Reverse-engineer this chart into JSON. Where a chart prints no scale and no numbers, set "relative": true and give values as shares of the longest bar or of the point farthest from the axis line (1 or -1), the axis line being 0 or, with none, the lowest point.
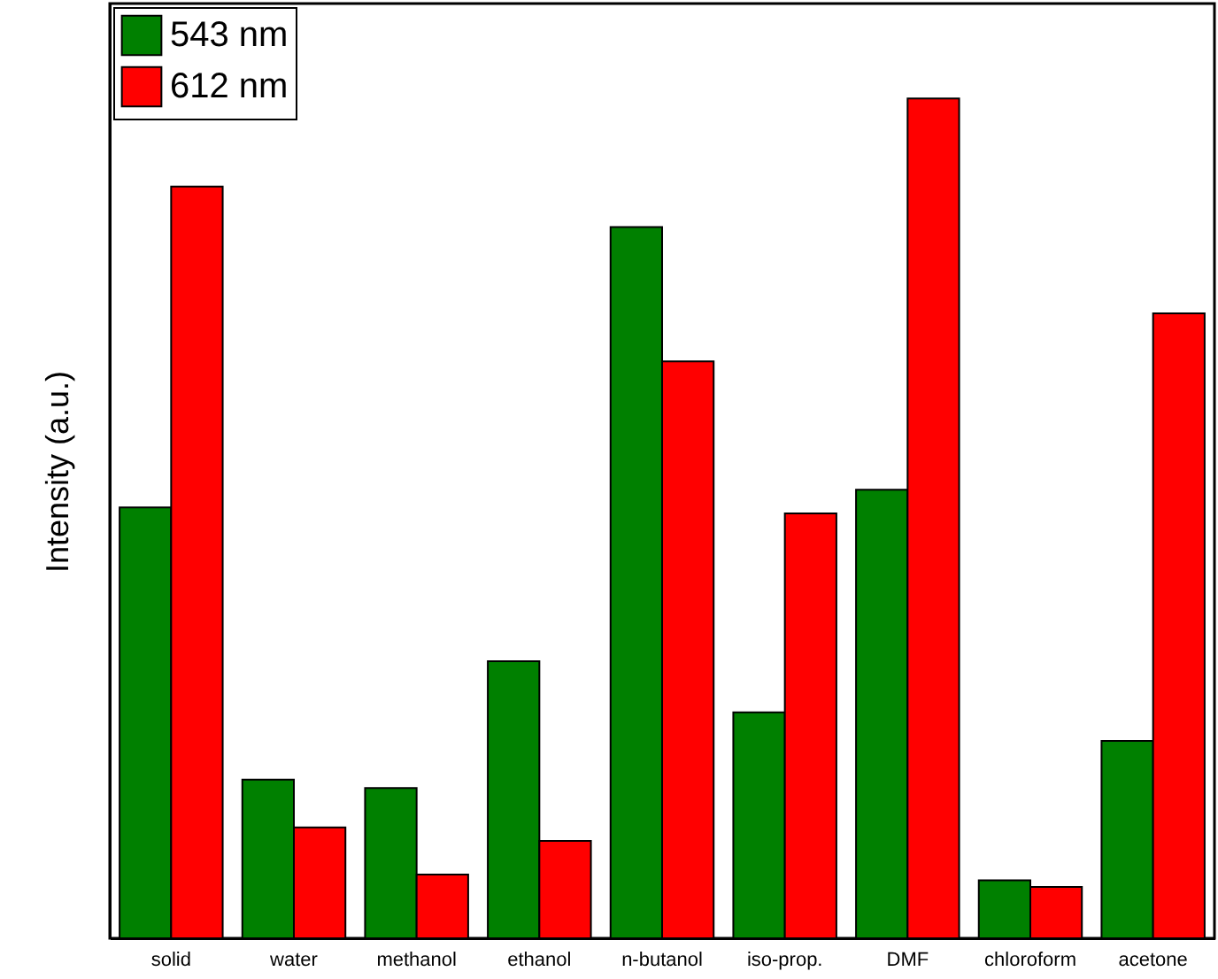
{
  "chart_data": {
    "type": "bar",
    "ylabel": "Intensity (a.u.)",
    "relative": true,
    "legend": "top left",
    "grid": false,
    "categories": [
      "solid",
      "water",
      "methanol",
      "ethanol",
      "n-butanol",
      "iso-prop.",
      "DMF",
      "chloroform",
      "acetone"
    ],
    "series": [
      {
        "name": "543 nm",
        "color": "#008000",
        "values": [
          0.513,
          0.189,
          0.179,
          0.33,
          0.847,
          0.269,
          0.534,
          0.069,
          0.235
        ]
      },
      {
        "name": "612 nm",
        "color": "#ff0000",
        "values": [
          0.895,
          0.132,
          0.076,
          0.116,
          0.687,
          0.506,
          1,
          0.061,
          0.744
        ]
      }
    ]
  }
}
